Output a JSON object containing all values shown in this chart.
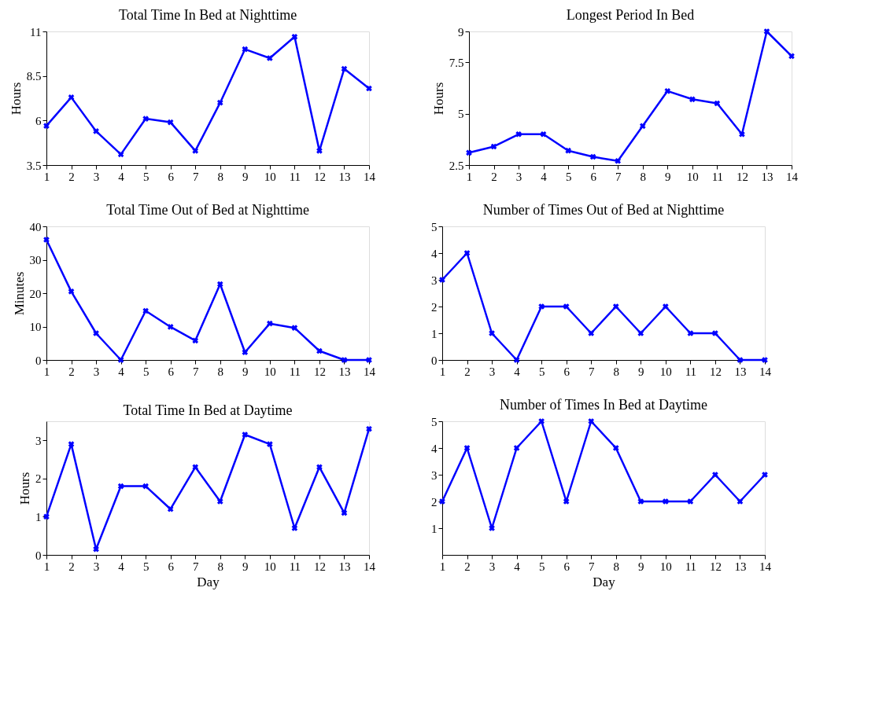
{
  "chart_data": [
    {
      "type": "line",
      "title": "Total Time In Bed at Nighttime",
      "ylabel": "Hours",
      "x": [
        1,
        2,
        3,
        4,
        5,
        6,
        7,
        8,
        9,
        10,
        11,
        12,
        13,
        14
      ],
      "series": [
        {
          "color": "#0000ff",
          "values": [
            5.7,
            7.3,
            5.4,
            4.1,
            6.1,
            5.9,
            4.3,
            7.0,
            10.0,
            9.5,
            10.7,
            4.3,
            8.9,
            7.8
          ]
        }
      ],
      "xlim": [
        1,
        14
      ],
      "xticks": [
        1,
        2,
        3,
        4,
        5,
        6,
        7,
        8,
        9,
        10,
        11,
        12,
        13,
        14
      ],
      "ylim": [
        3.5,
        11
      ],
      "yticks": [
        3.5,
        6,
        8.5,
        11
      ],
      "marker": "cross",
      "line_style": "solid",
      "grid": false,
      "legend": false
    },
    {
      "type": "line",
      "title": "Longest Period In Bed",
      "ylabel": "Hours",
      "x": [
        1,
        2,
        3,
        4,
        5,
        6,
        7,
        8,
        9,
        10,
        11,
        12,
        13,
        14
      ],
      "series": [
        {
          "color": "#0000ff",
          "values": [
            3.1,
            3.4,
            4.0,
            4.0,
            3.2,
            2.9,
            2.7,
            4.4,
            6.1,
            5.7,
            5.5,
            4.0,
            9.0,
            7.8
          ]
        }
      ],
      "xlim": [
        1,
        14
      ],
      "xticks": [
        1,
        2,
        3,
        4,
        5,
        6,
        7,
        8,
        9,
        10,
        11,
        12,
        13,
        14
      ],
      "ylim": [
        2.5,
        9
      ],
      "yticks": [
        2.5,
        5,
        7.5,
        9
      ],
      "marker": "cross",
      "line_style": "solid",
      "grid": false,
      "legend": false
    },
    {
      "type": "line",
      "title": "Total Time Out of Bed at Nighttime",
      "ylabel": "Minutes",
      "x": [
        1,
        2,
        3,
        4,
        5,
        6,
        7,
        8,
        9,
        10,
        11,
        12,
        13,
        14
      ],
      "series": [
        {
          "color": "#0000ff",
          "values": [
            36,
            20.5,
            8,
            0,
            14.7,
            9.9,
            5.8,
            22.7,
            2.3,
            10.9,
            9.6,
            2.7,
            0,
            0
          ]
        }
      ],
      "xlim": [
        1,
        14
      ],
      "xticks": [
        1,
        2,
        3,
        4,
        5,
        6,
        7,
        8,
        9,
        10,
        11,
        12,
        13,
        14
      ],
      "ylim": [
        0,
        40
      ],
      "yticks": [
        0,
        10,
        20,
        30,
        40
      ],
      "marker": "cross",
      "line_style": "solid",
      "grid": false,
      "legend": false
    },
    {
      "type": "line",
      "title": "Number of Times Out of Bed at Nighttime",
      "x": [
        1,
        2,
        3,
        4,
        5,
        6,
        7,
        8,
        9,
        10,
        11,
        12,
        13,
        14
      ],
      "series": [
        {
          "color": "#0000ff",
          "values": [
            3,
            4,
            1,
            0,
            2,
            2,
            1,
            2,
            1,
            2,
            1,
            1,
            0,
            0
          ]
        }
      ],
      "xlim": [
        1,
        14
      ],
      "xticks": [
        1,
        2,
        3,
        4,
        5,
        6,
        7,
        8,
        9,
        10,
        11,
        12,
        13,
        14
      ],
      "ylim": [
        0,
        5
      ],
      "yticks": [
        0,
        1,
        2,
        3,
        4,
        5
      ],
      "marker": "cross",
      "line_style": "solid",
      "grid": false,
      "legend": false
    },
    {
      "type": "line",
      "title": "Total Time In Bed at Daytime",
      "xlabel": "Day",
      "ylabel": "Hours",
      "x": [
        1,
        2,
        3,
        4,
        5,
        6,
        7,
        8,
        9,
        10,
        11,
        12,
        13,
        14
      ],
      "series": [
        {
          "color": "#0000ff",
          "values": [
            1.0,
            2.9,
            0.15,
            1.8,
            1.8,
            1.2,
            2.3,
            1.4,
            3.15,
            2.9,
            0.7,
            2.3,
            1.1,
            3.3
          ]
        }
      ],
      "xlim": [
        1,
        14
      ],
      "xticks": [
        1,
        2,
        3,
        4,
        5,
        6,
        7,
        8,
        9,
        10,
        11,
        12,
        13,
        14
      ],
      "ylim": [
        0,
        3.5
      ],
      "yticks": [
        0,
        1,
        2,
        3
      ],
      "marker": "cross",
      "line_style": "solid",
      "grid": false,
      "legend": false
    },
    {
      "type": "line",
      "title": "Number of Times In Bed at Daytime",
      "xlabel": "Day",
      "x": [
        1,
        2,
        3,
        4,
        5,
        6,
        7,
        8,
        9,
        10,
        11,
        12,
        13,
        14
      ],
      "series": [
        {
          "color": "#0000ff",
          "values": [
            2,
            4,
            1,
            4,
            5,
            2,
            5,
            4,
            2,
            2,
            2,
            3,
            2,
            3
          ]
        }
      ],
      "xlim": [
        1,
        14
      ],
      "xticks": [
        1,
        2,
        3,
        4,
        5,
        6,
        7,
        8,
        9,
        10,
        11,
        12,
        13,
        14
      ],
      "ylim": [
        0,
        5
      ],
      "yticks": [
        1,
        2,
        3,
        4,
        5
      ],
      "marker": "cross",
      "line_style": "solid",
      "grid": false,
      "legend": false
    }
  ]
}
